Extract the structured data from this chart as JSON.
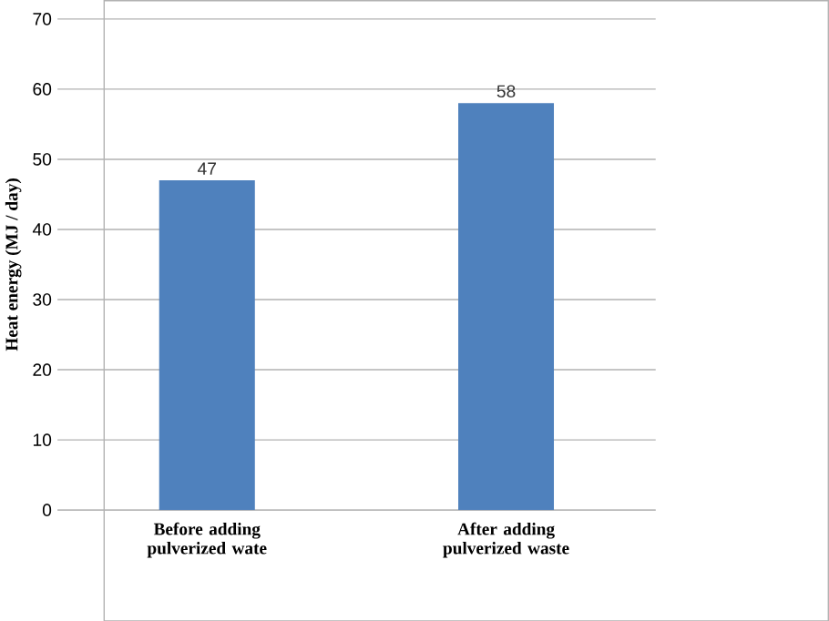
{
  "chart_data": {
    "type": "bar",
    "ylabel": "Heat energy (MJ / day)",
    "categories": [
      "Before adding pulverized wate",
      "After adding pulverized waste"
    ],
    "values": [
      47,
      58
    ],
    "color": "#4f81bd",
    "ylim": [
      0,
      70
    ],
    "yticks": [
      0,
      10,
      20,
      30,
      40,
      50,
      60,
      70
    ],
    "grid": "y",
    "data_labels": true
  }
}
